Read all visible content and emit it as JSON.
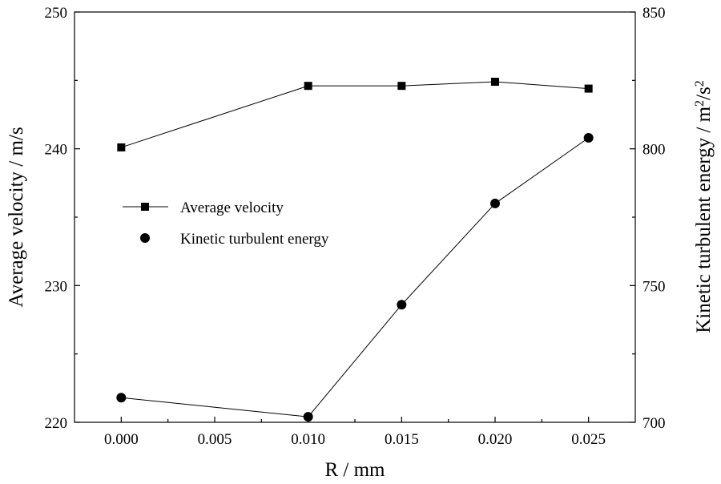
{
  "chart_data": {
    "type": "line",
    "title": "",
    "xlabel": "R / mm",
    "ylabel_left": "Average velocity / m/s",
    "ylabel_right": "Kinetic turbulent energy / m²/s²",
    "ylabel_right_parts": {
      "base1": "Kinetic turbulent energy / m",
      "sup1": "2",
      "mid": "/s",
      "sup2": "2"
    },
    "xlim": [
      -0.0025,
      0.0275
    ],
    "ylim_left": [
      220,
      250
    ],
    "ylim_right": [
      700,
      850
    ],
    "x_ticks": [
      0.0,
      0.005,
      0.01,
      0.015,
      0.02,
      0.025
    ],
    "x_tick_labels": [
      "0.000",
      "0.005",
      "0.010",
      "0.015",
      "0.020",
      "0.025"
    ],
    "y_left_ticks": [
      220,
      230,
      240,
      250
    ],
    "y_left_tick_labels": [
      "220",
      "230",
      "240",
      "250"
    ],
    "y_right_ticks": [
      700,
      750,
      800,
      850
    ],
    "y_right_tick_labels": [
      "700",
      "750",
      "800",
      "850"
    ],
    "legend_position": "left-center",
    "grid": false,
    "series": [
      {
        "name": "Average velocity",
        "axis": "left",
        "marker": "square",
        "x": [
          0.0,
          0.01,
          0.015,
          0.02,
          0.025
        ],
        "values": [
          240.1,
          244.6,
          244.6,
          244.9,
          244.4
        ]
      },
      {
        "name": "Kinetic turbulent energy",
        "axis": "right",
        "marker": "circle",
        "x": [
          0.0,
          0.01,
          0.015,
          0.02,
          0.025
        ],
        "values": [
          709,
          702,
          743,
          780,
          804
        ]
      }
    ]
  }
}
